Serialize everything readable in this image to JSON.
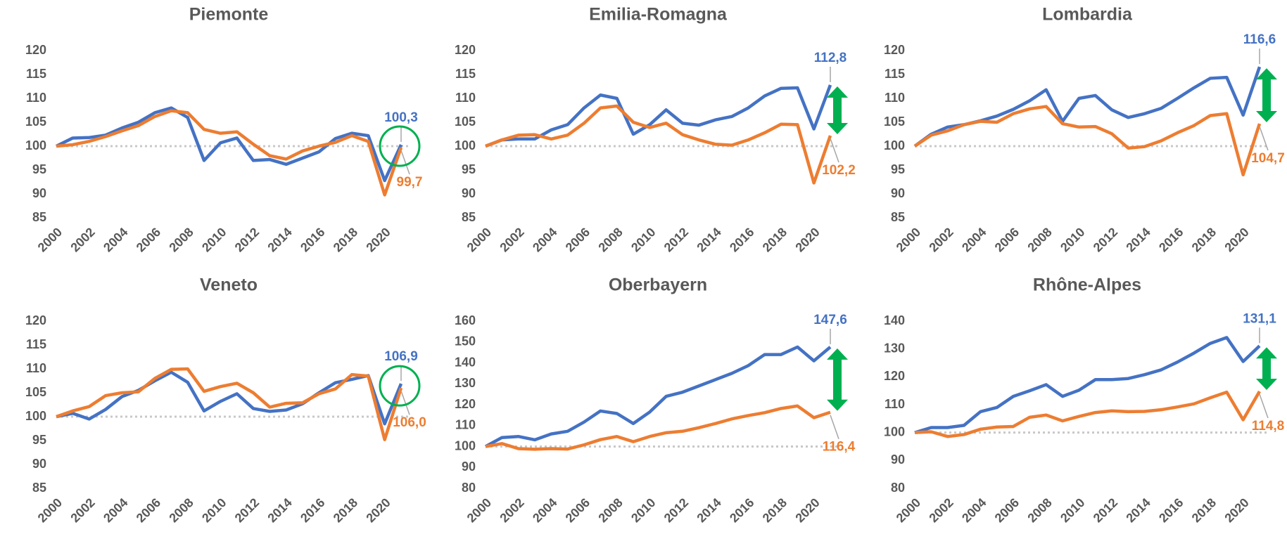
{
  "chart_data": [
    {
      "type": "line",
      "title": "Piemonte",
      "highlight": "circle",
      "x": [
        2000,
        2001,
        2002,
        2003,
        2004,
        2005,
        2006,
        2007,
        2008,
        2009,
        2010,
        2011,
        2012,
        2013,
        2014,
        2015,
        2016,
        2017,
        2018,
        2019,
        2020,
        2021
      ],
      "xlim": [
        2000,
        2021
      ],
      "xticks": [
        2000,
        2002,
        2004,
        2006,
        2008,
        2010,
        2012,
        2014,
        2016,
        2018,
        2020
      ],
      "ylim": [
        85,
        120
      ],
      "yticks": [
        85,
        90,
        95,
        100,
        105,
        110,
        115,
        120
      ],
      "reference_line": 100,
      "series": [
        {
          "color": "#4472c4",
          "values": [
            100,
            101.7,
            101.8,
            102.3,
            103.8,
            105,
            107,
            108,
            106,
            97,
            100.7,
            101.7,
            97,
            97.2,
            96.2,
            97.5,
            98.8,
            101.6,
            102.7,
            102.2,
            92.8,
            100.3
          ],
          "value_labels": [
            null,
            null,
            null,
            null,
            null,
            null,
            null,
            null,
            null,
            null,
            null,
            null,
            null,
            null,
            null,
            null,
            null,
            null,
            null,
            null,
            null,
            "100,3"
          ]
        },
        {
          "color": "#ed7d31",
          "values": [
            100,
            100.3,
            101,
            102,
            103.2,
            104.3,
            106.2,
            107.4,
            107,
            103.5,
            102.7,
            103,
            100.4,
            98,
            97.3,
            99,
            100,
            100.8,
            102.2,
            101,
            89.8,
            99.7
          ],
          "value_labels": [
            null,
            null,
            null,
            null,
            null,
            null,
            null,
            null,
            null,
            null,
            null,
            null,
            null,
            null,
            null,
            null,
            null,
            null,
            null,
            null,
            null,
            "99,7"
          ]
        }
      ]
    },
    {
      "type": "line",
      "title": "Emilia-Romagna",
      "highlight": "arrow",
      "x": [
        2000,
        2001,
        2002,
        2003,
        2004,
        2005,
        2006,
        2007,
        2008,
        2009,
        2010,
        2011,
        2012,
        2013,
        2014,
        2015,
        2016,
        2017,
        2018,
        2019,
        2020,
        2021
      ],
      "xlim": [
        2000,
        2021
      ],
      "xticks": [
        2000,
        2002,
        2004,
        2006,
        2008,
        2010,
        2012,
        2014,
        2016,
        2018,
        2020
      ],
      "ylim": [
        85,
        120
      ],
      "yticks": [
        85,
        90,
        95,
        100,
        105,
        110,
        115,
        120
      ],
      "reference_line": 100,
      "series": [
        {
          "color": "#4472c4",
          "values": [
            100,
            101.3,
            101.5,
            101.5,
            103.4,
            104.5,
            108,
            110.7,
            110,
            102.5,
            104.5,
            107.6,
            104.8,
            104.4,
            105.5,
            106.2,
            108,
            110.5,
            112.1,
            112.2,
            103.6,
            112.8
          ],
          "value_labels": [
            null,
            null,
            null,
            null,
            null,
            null,
            null,
            null,
            null,
            null,
            null,
            null,
            null,
            null,
            null,
            null,
            null,
            null,
            null,
            null,
            null,
            "112,8"
          ]
        },
        {
          "color": "#ed7d31",
          "values": [
            100,
            101.3,
            102.3,
            102.4,
            101.5,
            102.3,
            104.8,
            108,
            108.4,
            105,
            103.9,
            104.8,
            102.4,
            101.3,
            100.4,
            100.2,
            101.3,
            102.8,
            104.6,
            104.5,
            92.3,
            102.2
          ],
          "value_labels": [
            null,
            null,
            null,
            null,
            null,
            null,
            null,
            null,
            null,
            null,
            null,
            null,
            null,
            null,
            null,
            null,
            null,
            null,
            null,
            null,
            null,
            "102,2"
          ]
        }
      ]
    },
    {
      "type": "line",
      "title": "Lombardia",
      "highlight": "arrow",
      "x": [
        2000,
        2001,
        2002,
        2003,
        2004,
        2005,
        2006,
        2007,
        2008,
        2009,
        2010,
        2011,
        2012,
        2013,
        2014,
        2015,
        2016,
        2017,
        2018,
        2019,
        2020,
        2021
      ],
      "xlim": [
        2000,
        2021
      ],
      "xticks": [
        2000,
        2002,
        2004,
        2006,
        2008,
        2010,
        2012,
        2014,
        2016,
        2018,
        2020
      ],
      "ylim": [
        85,
        120
      ],
      "yticks": [
        85,
        90,
        95,
        100,
        105,
        110,
        115,
        120
      ],
      "reference_line": 100,
      "series": [
        {
          "color": "#4472c4",
          "values": [
            100,
            102.5,
            104,
            104.5,
            105.3,
            106.3,
            107.7,
            109.5,
            111.8,
            105.2,
            110,
            110.6,
            107.6,
            106,
            106.8,
            107.9,
            110,
            112.2,
            114.2,
            114.4,
            106.5,
            116.6
          ],
          "value_labels": [
            null,
            null,
            null,
            null,
            null,
            null,
            null,
            null,
            null,
            null,
            null,
            null,
            null,
            null,
            null,
            null,
            null,
            null,
            null,
            null,
            null,
            "116,6"
          ]
        },
        {
          "color": "#ed7d31",
          "values": [
            100,
            102.3,
            103.2,
            104.5,
            105.2,
            105,
            106.8,
            107.8,
            108.3,
            104.7,
            104,
            104.1,
            102.6,
            99.6,
            99.9,
            101.1,
            102.8,
            104.3,
            106.4,
            106.8,
            94,
            104.7
          ],
          "value_labels": [
            null,
            null,
            null,
            null,
            null,
            null,
            null,
            null,
            null,
            null,
            null,
            null,
            null,
            null,
            null,
            null,
            null,
            null,
            null,
            null,
            null,
            "104,7"
          ]
        }
      ]
    },
    {
      "type": "line",
      "title": "Veneto",
      "highlight": "circle",
      "x": [
        2000,
        2001,
        2002,
        2003,
        2004,
        2005,
        2006,
        2007,
        2008,
        2009,
        2010,
        2011,
        2012,
        2013,
        2014,
        2015,
        2016,
        2017,
        2018,
        2019,
        2020,
        2021
      ],
      "xlim": [
        2000,
        2021
      ],
      "xticks": [
        2000,
        2002,
        2004,
        2006,
        2008,
        2010,
        2012,
        2014,
        2016,
        2018,
        2020
      ],
      "ylim": [
        85,
        120
      ],
      "yticks": [
        85,
        90,
        95,
        100,
        105,
        110,
        115,
        120
      ],
      "reference_line": 100,
      "series": [
        {
          "color": "#4472c4",
          "values": [
            100,
            100.7,
            99.5,
            101.5,
            104.2,
            105.5,
            107.5,
            109.3,
            107.2,
            101.2,
            103.2,
            104.8,
            101.7,
            101.1,
            101.4,
            102.7,
            105,
            107.1,
            107.8,
            108.6,
            98.5,
            106.9
          ],
          "value_labels": [
            null,
            null,
            null,
            null,
            null,
            null,
            null,
            null,
            null,
            null,
            null,
            null,
            null,
            null,
            null,
            null,
            null,
            null,
            null,
            null,
            null,
            "106,9"
          ]
        },
        {
          "color": "#ed7d31",
          "values": [
            100,
            101.2,
            102.1,
            104.4,
            105,
            105.2,
            108,
            109.9,
            110,
            105.3,
            106.3,
            107,
            105,
            102,
            102.8,
            102.9,
            104.8,
            105.8,
            108.8,
            108.5,
            95.2,
            106.0
          ],
          "value_labels": [
            null,
            null,
            null,
            null,
            null,
            null,
            null,
            null,
            null,
            null,
            null,
            null,
            null,
            null,
            null,
            null,
            null,
            null,
            null,
            null,
            null,
            "106,0"
          ]
        }
      ]
    },
    {
      "type": "line",
      "title": "Oberbayern",
      "highlight": "arrow",
      "x": [
        2000,
        2001,
        2002,
        2003,
        2004,
        2005,
        2006,
        2007,
        2008,
        2009,
        2010,
        2011,
        2012,
        2013,
        2014,
        2015,
        2016,
        2017,
        2018,
        2019,
        2020,
        2021
      ],
      "xlim": [
        2000,
        2021
      ],
      "xticks": [
        2000,
        2002,
        2004,
        2006,
        2008,
        2010,
        2012,
        2014,
        2016,
        2018,
        2020
      ],
      "ylim": [
        80,
        160
      ],
      "yticks": [
        80,
        90,
        100,
        110,
        120,
        130,
        140,
        150,
        160
      ],
      "reference_line": 100,
      "series": [
        {
          "color": "#4472c4",
          "values": [
            100,
            104.3,
            104.8,
            103.2,
            106,
            107.3,
            111.7,
            117,
            115.8,
            111,
            116.5,
            124,
            126,
            129,
            132,
            135,
            138.7,
            144,
            144,
            147.6,
            141,
            147.6
          ],
          "value_labels": [
            null,
            null,
            null,
            null,
            null,
            null,
            null,
            null,
            null,
            null,
            null,
            null,
            null,
            null,
            null,
            null,
            null,
            null,
            null,
            null,
            null,
            "147,6"
          ]
        },
        {
          "color": "#ed7d31",
          "values": [
            100,
            101.4,
            99,
            98.7,
            99,
            98.8,
            100.8,
            103.3,
            104.8,
            102.3,
            104.8,
            106.6,
            107.3,
            109,
            111,
            113.2,
            114.8,
            116.2,
            118.2,
            119.4,
            113.8,
            116.4
          ],
          "value_labels": [
            null,
            null,
            null,
            null,
            null,
            null,
            null,
            null,
            null,
            null,
            null,
            null,
            null,
            null,
            null,
            null,
            null,
            null,
            null,
            null,
            null,
            "116,4"
          ]
        }
      ]
    },
    {
      "type": "line",
      "title": "Rhône-Alpes",
      "highlight": "arrow",
      "x": [
        2000,
        2001,
        2002,
        2003,
        2004,
        2005,
        2006,
        2007,
        2008,
        2009,
        2010,
        2011,
        2012,
        2013,
        2014,
        2015,
        2016,
        2017,
        2018,
        2019,
        2020,
        2021
      ],
      "xlim": [
        2000,
        2021
      ],
      "xticks": [
        2000,
        2002,
        2004,
        2006,
        2008,
        2010,
        2012,
        2014,
        2016,
        2018,
        2020
      ],
      "ylim": [
        80,
        140
      ],
      "yticks": [
        80,
        90,
        100,
        110,
        120,
        130,
        140
      ],
      "reference_line": 100,
      "series": [
        {
          "color": "#4472c4",
          "values": [
            100,
            101.8,
            101.8,
            102.6,
            107.5,
            109,
            113,
            115,
            117.2,
            113,
            115.2,
            119,
            119,
            119.4,
            120.8,
            122.5,
            125.3,
            128.5,
            132,
            134.1,
            125.5,
            131.1
          ],
          "value_labels": [
            null,
            null,
            null,
            null,
            null,
            null,
            null,
            null,
            null,
            null,
            null,
            null,
            null,
            null,
            null,
            null,
            null,
            null,
            null,
            null,
            null,
            "131,1"
          ]
        },
        {
          "color": "#ed7d31",
          "values": [
            100,
            100.3,
            98.6,
            99.3,
            101.2,
            102,
            102.2,
            105.5,
            106.3,
            104.2,
            105.8,
            107.2,
            107.8,
            107.5,
            107.6,
            108.2,
            109.2,
            110.3,
            112.5,
            114.5,
            104.6,
            114.8
          ],
          "value_labels": [
            null,
            null,
            null,
            null,
            null,
            null,
            null,
            null,
            null,
            null,
            null,
            null,
            null,
            null,
            null,
            null,
            null,
            null,
            null,
            null,
            null,
            "114,8"
          ]
        }
      ]
    }
  ]
}
